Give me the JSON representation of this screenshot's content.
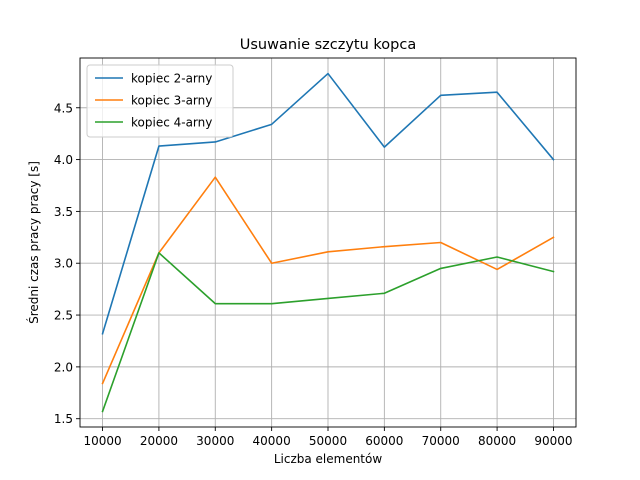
{
  "chart_data": {
    "type": "line",
    "title": "Usuwanie szczytu kopca",
    "xlabel": "Liczba elementów",
    "ylabel": "Średni czas pracy pracy [s]",
    "x": [
      10000,
      20000,
      30000,
      40000,
      50000,
      60000,
      70000,
      80000,
      90000
    ],
    "x_tick_labels": [
      "10000",
      "20000",
      "30000",
      "40000",
      "50000",
      "60000",
      "70000",
      "80000",
      "90000"
    ],
    "y_ticks": [
      1.5,
      2.0,
      2.5,
      3.0,
      3.5,
      4.0,
      4.5
    ],
    "y_tick_labels": [
      "1.5",
      "2.0",
      "2.5",
      "3.0",
      "3.5",
      "4.0",
      "4.5"
    ],
    "xlim": [
      6000,
      94000
    ],
    "ylim": [
      1.42,
      4.98
    ],
    "grid": true,
    "legend_position": "top-left",
    "series": [
      {
        "name": "kopiec 2-arny",
        "color": "#1f77b4",
        "values": [
          2.32,
          4.13,
          4.17,
          4.34,
          4.83,
          4.12,
          4.62,
          4.65,
          4.0
        ]
      },
      {
        "name": "kopiec 3-arny",
        "color": "#ff7f0e",
        "values": [
          1.84,
          3.1,
          3.83,
          3.0,
          3.11,
          3.16,
          3.2,
          2.94,
          3.25
        ]
      },
      {
        "name": "kopiec 4-arny",
        "color": "#2ca02c",
        "values": [
          1.57,
          3.1,
          2.61,
          2.61,
          2.66,
          2.71,
          2.95,
          3.06,
          2.92
        ]
      }
    ]
  }
}
